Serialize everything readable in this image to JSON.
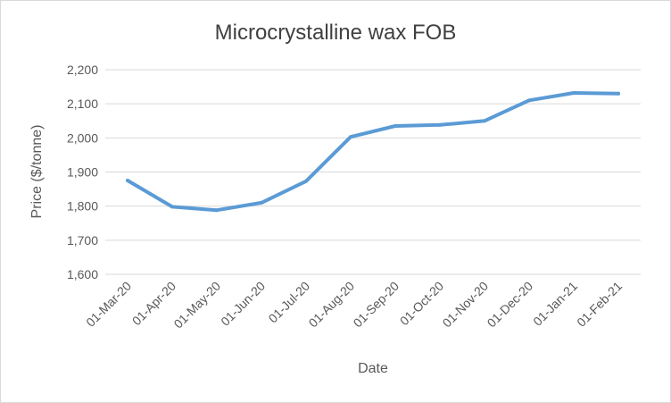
{
  "chart_data": {
    "type": "line",
    "title": "Microcrystalline wax FOB",
    "xlabel": "Date",
    "ylabel": "Price ($/tonne)",
    "ylim": [
      1600,
      2200
    ],
    "y_ticks": [
      "1,600",
      "1,700",
      "1,800",
      "1,900",
      "2,000",
      "2,100",
      "2,200"
    ],
    "y_tick_values": [
      1600,
      1700,
      1800,
      1900,
      2000,
      2100,
      2200
    ],
    "categories": [
      "01-Mar-20",
      "01-Apr-20",
      "01-May-20",
      "01-Jun-20",
      "01-Jul-20",
      "01-Aug-20",
      "01-Sep-20",
      "01-Oct-20",
      "01-Nov-20",
      "01-Dec-20",
      "01-Jan-21",
      "01-Feb-21"
    ],
    "values": [
      1875,
      1798,
      1788,
      1810,
      1873,
      2003,
      2035,
      2038,
      2050,
      2110,
      2132,
      2130
    ],
    "grid": true,
    "legend": "none",
    "line_color": "#5b9bd5"
  }
}
